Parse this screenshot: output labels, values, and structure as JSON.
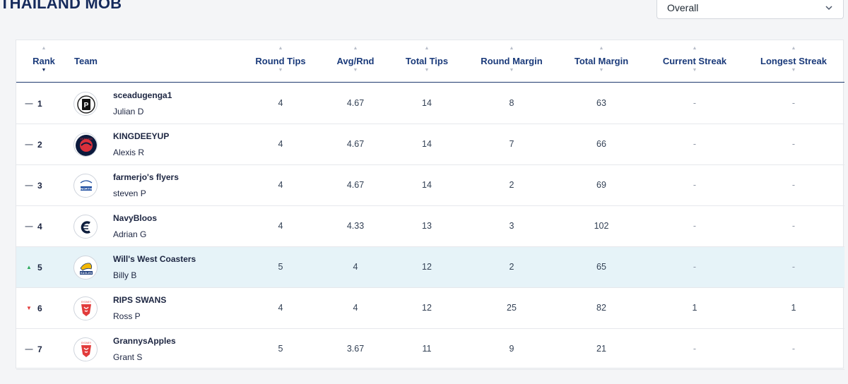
{
  "header": {
    "title": "THAILAND MOB",
    "filter": {
      "selected": "Overall"
    }
  },
  "columns": {
    "rank": "Rank",
    "team": "Team",
    "round_tips": "Round Tips",
    "avg_rnd": "Avg/Rnd",
    "total_tips": "Total Tips",
    "round_margin": "Round Margin",
    "total_margin": "Total Margin",
    "current_streak": "Current Streak",
    "longest_streak": "Longest Streak"
  },
  "sort_icons": {
    "up": "▲",
    "down": "▼"
  },
  "rows": [
    {
      "movement": "same",
      "indicator": "—",
      "rank": "1",
      "team": "sceadugenga1",
      "user": "Julian D",
      "logo": "port-adelaide-icon",
      "round_tips": "4",
      "avg_rnd": "4.67",
      "total_tips": "14",
      "round_margin": "8",
      "total_margin": "63",
      "current_streak": "-",
      "longest_streak": "-"
    },
    {
      "movement": "same",
      "indicator": "—",
      "rank": "2",
      "team": "KINGDEEYUP",
      "user": "Alexis R",
      "logo": "melbourne-icon",
      "round_tips": "4",
      "avg_rnd": "4.67",
      "total_tips": "14",
      "round_margin": "7",
      "total_margin": "66",
      "current_streak": "-",
      "longest_streak": "-"
    },
    {
      "movement": "same",
      "indicator": "—",
      "rank": "3",
      "team": "farmerjo's flyers",
      "user": "steven P",
      "logo": "north-melbourne-icon",
      "round_tips": "4",
      "avg_rnd": "4.67",
      "total_tips": "14",
      "round_margin": "2",
      "total_margin": "69",
      "current_streak": "-",
      "longest_streak": "-"
    },
    {
      "movement": "same",
      "indicator": "—",
      "rank": "4",
      "team": "NavyBloos",
      "user": "Adrian G",
      "logo": "carlton-icon",
      "round_tips": "4",
      "avg_rnd": "4.33",
      "total_tips": "13",
      "round_margin": "3",
      "total_margin": "102",
      "current_streak": "-",
      "longest_streak": "-"
    },
    {
      "movement": "up",
      "indicator": "▲",
      "rank": "5",
      "team": "Will's West Coasters",
      "user": "Billy B",
      "logo": "west-coast-eagles-icon",
      "round_tips": "5",
      "avg_rnd": "4",
      "total_tips": "12",
      "round_margin": "2",
      "total_margin": "65",
      "current_streak": "-",
      "longest_streak": "-"
    },
    {
      "movement": "down",
      "indicator": "▼",
      "rank": "6",
      "team": "RIPS SWANS",
      "user": "Ross P",
      "logo": "sydney-swans-icon",
      "round_tips": "4",
      "avg_rnd": "4",
      "total_tips": "12",
      "round_margin": "25",
      "total_margin": "82",
      "current_streak": "1",
      "longest_streak": "1"
    },
    {
      "movement": "same",
      "indicator": "—",
      "rank": "7",
      "team": "GrannysApples",
      "user": "Grant S",
      "logo": "sydney-swans-icon",
      "round_tips": "5",
      "avg_rnd": "3.67",
      "total_tips": "11",
      "round_margin": "9",
      "total_margin": "21",
      "current_streak": "-",
      "longest_streak": "-"
    }
  ],
  "colors": {
    "heading": "#152a5c",
    "column_header": "#1a3a7a",
    "highlight_row": "#e6f3f8",
    "up": "#2eaa5c",
    "down": "#e23b3b"
  }
}
